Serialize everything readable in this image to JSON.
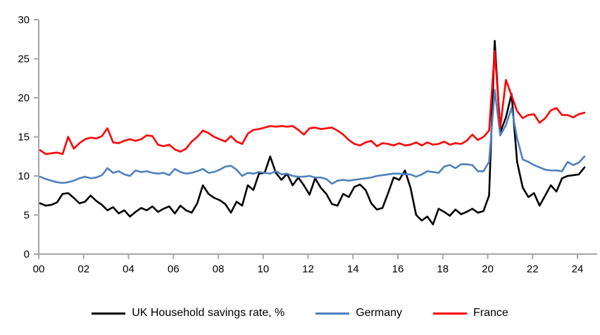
{
  "chart_data": {
    "type": "line",
    "title": "",
    "xlabel": "",
    "ylabel": "",
    "grid": false,
    "legend_position": "bottom",
    "x_start_year": 2000,
    "x_step_years": 0.25,
    "x_tick_labels": [
      "00",
      "02",
      "04",
      "06",
      "08",
      "10",
      "12",
      "14",
      "16",
      "18",
      "20",
      "22",
      "24"
    ],
    "x_tick_years": [
      0,
      2,
      4,
      6,
      8,
      10,
      12,
      14,
      16,
      18,
      20,
      22,
      24
    ],
    "y_ticks": [
      "0",
      "5",
      "10",
      "15",
      "20",
      "25",
      "30"
    ],
    "y_tick_values": [
      0,
      5,
      10,
      15,
      20,
      25,
      30
    ],
    "ylim": [
      0,
      30
    ],
    "axis_color": "#A6A6A6",
    "series": [
      {
        "name": "UK Household savings rate, %",
        "color": "#000000",
        "values": [
          6.5,
          6.2,
          6.3,
          6.6,
          7.7,
          7.8,
          7.2,
          6.5,
          6.7,
          7.5,
          6.8,
          6.3,
          5.6,
          6.0,
          5.2,
          5.6,
          4.8,
          5.4,
          5.9,
          5.6,
          6.1,
          5.4,
          5.8,
          6.1,
          5.2,
          6.2,
          5.6,
          5.3,
          6.5,
          8.8,
          7.7,
          7.2,
          6.9,
          6.4,
          5.3,
          6.7,
          6.2,
          8.8,
          8.2,
          10.3,
          10.4,
          12.5,
          10.4,
          9.5,
          10.3,
          8.8,
          9.8,
          8.8,
          7.6,
          9.7,
          8.5,
          7.7,
          6.4,
          6.2,
          7.7,
          7.3,
          8.6,
          8.9,
          8.2,
          6.5,
          5.7,
          5.9,
          7.8,
          9.8,
          9.5,
          10.7,
          8.5,
          5.0,
          4.3,
          4.8,
          3.8,
          5.8,
          5.4,
          4.9,
          5.7,
          5.1,
          5.4,
          5.8,
          5.3,
          5.5,
          7.5,
          27.3,
          15.6,
          17.5,
          20.5,
          11.8,
          8.5,
          7.3,
          7.8,
          6.2,
          7.5,
          8.8,
          8.0,
          9.7,
          10.0,
          10.1,
          10.2,
          11.1
        ]
      },
      {
        "name": "Germany",
        "color": "#4F81BD",
        "values": [
          9.9,
          9.6,
          9.4,
          9.2,
          9.1,
          9.2,
          9.4,
          9.7,
          9.9,
          9.7,
          9.8,
          10.1,
          11.0,
          10.4,
          10.6,
          10.2,
          10.0,
          10.7,
          10.5,
          10.6,
          10.4,
          10.3,
          10.4,
          10.1,
          10.9,
          10.5,
          10.3,
          10.4,
          10.6,
          10.9,
          10.4,
          10.5,
          10.8,
          11.2,
          11.3,
          10.8,
          10.0,
          10.4,
          10.3,
          10.5,
          10.4,
          10.3,
          10.6,
          10.2,
          10.3,
          10.0,
          9.9,
          9.9,
          10.0,
          9.8,
          9.8,
          9.6,
          9.0,
          9.4,
          9.5,
          9.4,
          9.5,
          9.6,
          9.7,
          9.8,
          10.0,
          10.1,
          10.2,
          10.3,
          10.3,
          10.2,
          10.2,
          9.9,
          10.2,
          10.6,
          10.5,
          10.4,
          11.2,
          11.4,
          11.0,
          11.5,
          11.5,
          11.4,
          10.6,
          10.6,
          11.8,
          21.0,
          15.2,
          16.5,
          18.7,
          14.8,
          12.1,
          11.8,
          11.4,
          11.1,
          10.8,
          10.7,
          10.7,
          10.6,
          11.8,
          11.4,
          11.7,
          12.5
        ]
      },
      {
        "name": "France",
        "color": "#FF0000",
        "values": [
          13.3,
          12.8,
          12.9,
          13.0,
          12.8,
          15.0,
          13.5,
          14.2,
          14.7,
          14.9,
          14.8,
          15.1,
          16.1,
          14.3,
          14.2,
          14.5,
          14.7,
          14.5,
          14.7,
          15.2,
          15.1,
          14.0,
          13.8,
          14.0,
          13.4,
          13.1,
          13.5,
          14.4,
          15.0,
          15.8,
          15.5,
          15.0,
          14.7,
          14.4,
          15.1,
          14.4,
          14.1,
          15.4,
          15.9,
          16.0,
          16.2,
          16.4,
          16.3,
          16.4,
          16.3,
          16.4,
          15.9,
          15.3,
          16.1,
          16.2,
          16.0,
          16.1,
          16.2,
          15.8,
          15.3,
          14.6,
          14.1,
          13.9,
          14.3,
          14.5,
          13.8,
          14.2,
          14.1,
          13.9,
          14.2,
          13.9,
          14.0,
          14.3,
          13.9,
          14.3,
          14.0,
          14.1,
          14.4,
          14.0,
          14.2,
          14.1,
          14.5,
          15.3,
          14.6,
          15.0,
          15.8,
          26.0,
          16.2,
          22.3,
          20.3,
          18.3,
          17.4,
          17.8,
          17.9,
          16.8,
          17.4,
          18.4,
          18.7,
          17.8,
          17.8,
          17.5,
          17.9,
          18.1
        ]
      }
    ]
  }
}
